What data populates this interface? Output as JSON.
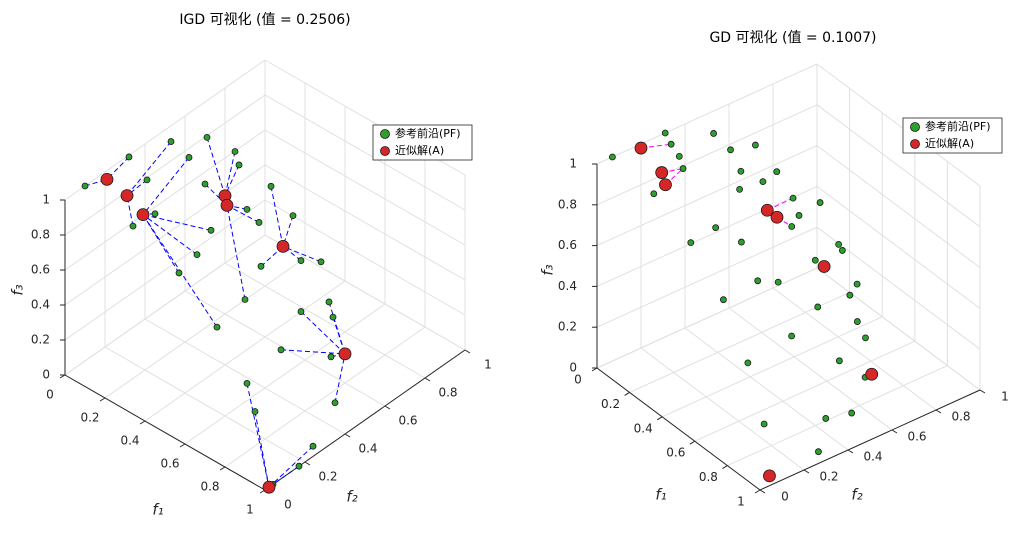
{
  "chart_data": [
    {
      "type": "scatter3d",
      "title": "IGD 可视化 (值 = 0.2506)",
      "x_label": "f₁",
      "y_label": "f₂",
      "z_label": "f₃",
      "xlim": [
        0,
        1
      ],
      "ylim": [
        0,
        1
      ],
      "zlim": [
        0,
        1
      ],
      "xticks": [
        0,
        0.2,
        0.4,
        0.6,
        0.8,
        1
      ],
      "yticks": [
        0,
        0.2,
        0.4,
        0.6,
        0.8,
        1
      ],
      "zticks": [
        0,
        0.2,
        0.4,
        0.6,
        0.8,
        1
      ],
      "grid": true,
      "link_color": "#0000ff",
      "link_from_series": 0,
      "series": [
        {
          "name": "参考前沿(PF)",
          "color": "#2ca02c",
          "x": [
            0,
            0,
            0.05,
            0,
            0.05,
            0,
            0.05,
            0.1,
            0.15,
            0.2,
            0.1,
            0.25,
            0.2,
            0.35,
            0.3,
            0.3,
            0.2,
            0.4,
            0.35,
            0.4,
            0.5,
            0.6,
            0.55,
            0.5,
            0.55,
            0.7,
            0.7,
            0.85,
            0.8,
            0.85,
            1,
            0.96,
            1,
            0.15
          ],
          "y": [
            0.1,
            0.32,
            0.36,
            0.53,
            0.57,
            0.71,
            0.8,
            0.77,
            0.55,
            0.71,
            0.93,
            0.72,
            0.94,
            0.83,
            0.98,
            0.43,
            0.14,
            0.17,
            0.31,
            0.58,
            0.4,
            0.16,
            0.63,
            0.82,
            0.79,
            0.38,
            0.63,
            0.5,
            0.11,
            0.1,
            0.17,
            0.28,
            0.04,
            0.3
          ],
          "z": [
            1,
            0.99,
            0.86,
            0.91,
            0.82,
            0.79,
            0.67,
            0.65,
            0.75,
            0.51,
            0.4,
            0.46,
            0.29,
            0.22,
            0.06,
            0.68,
            0.87,
            0.71,
            0.67,
            0.42,
            0.44,
            0.54,
            0.22,
            0.09,
            0.06,
            0.3,
            0.06,
            0,
            0.39,
            0.27,
            0,
            0,
            0,
            0.78
          ]
        },
        {
          "name": "近似解(A)",
          "color": "#d62728",
          "x": [
            0,
            0.05,
            0.1,
            0.1,
            0.15,
            0.3,
            0.72,
            1
          ],
          "y": [
            0.21,
            0.26,
            0.29,
            0.7,
            0.66,
            0.79,
            0.68,
            0.02
          ],
          "z": [
            0.95,
            0.85,
            0.75,
            0.53,
            0.54,
            0.3,
            0.05,
            0
          ]
        }
      ]
    },
    {
      "type": "scatter3d",
      "title": "GD 可视化 (值 = 0.1007)",
      "x_label": "f₁",
      "y_label": "f₂",
      "z_label": "f₃",
      "xlim": [
        0,
        1
      ],
      "ylim": [
        0,
        1
      ],
      "zlim": [
        0,
        1
      ],
      "xticks": [
        0,
        0.2,
        0.4,
        0.6,
        0.8,
        1
      ],
      "yticks": [
        0,
        0.2,
        0.4,
        0.6,
        0.8,
        1
      ],
      "zticks": [
        0,
        0.2,
        0.4,
        0.6,
        0.8,
        1
      ],
      "grid": true,
      "link_color": "#ff00ff",
      "link_from_series": 1,
      "series": [
        {
          "name": "参考前沿(PF)",
          "color": "#2ca02c",
          "x": [
            0,
            0,
            0.05,
            0.1,
            0.15,
            0.2,
            0,
            0.05,
            0,
            0.1,
            0.2,
            0.05,
            0.1,
            0.15,
            0.1,
            0.2,
            0.25,
            0.35,
            0.4,
            0.4,
            0.2,
            0.25,
            0.3,
            0.45,
            0.5,
            0.6,
            0.3,
            0.35,
            0.45,
            0.45,
            0.5,
            0.6,
            0.65,
            0.75,
            0.7,
            0.82,
            0.85,
            0.85,
            0.94,
            0.96
          ],
          "y": [
            0.07,
            0.31,
            0.3,
            0.3,
            0.28,
            0.11,
            0.53,
            0.57,
            0.72,
            0.58,
            0.5,
            0.78,
            0.68,
            0.78,
            0.94,
            0.77,
            0.7,
            0.28,
            0.13,
            0.36,
            0.95,
            0.93,
            0.77,
            0.49,
            0.36,
            0.13,
            0.96,
            0.89,
            0.67,
            0.85,
            0.85,
            0.44,
            0.62,
            0.13,
            0.7,
            0.55,
            0.41,
            0.13,
            0.31,
            0.07
          ],
          "z": [
            1,
            1,
            0.98,
            0.95,
            0.93,
            0.92,
            0.89,
            0.82,
            0.74,
            0.74,
            0.75,
            0.61,
            0.64,
            0.54,
            0.41,
            0.49,
            0.5,
            0.76,
            0.79,
            0.68,
            0.26,
            0.27,
            0.33,
            0.45,
            0.55,
            0.63,
            0.12,
            0.13,
            0.24,
            0.08,
            0.03,
            0.3,
            0.12,
            0.41,
            0.03,
            0,
            0.06,
            0.17,
            0,
            0
          ]
        },
        {
          "name": "近似解(A)",
          "color": "#d62728",
          "x": [
            0,
            0.1,
            0.15,
            0.1,
            0.2,
            0.3,
            0.7,
            0.95
          ],
          "y": [
            0.2,
            0.22,
            0.2,
            0.7,
            0.67,
            0.81,
            0.73,
            0.08
          ],
          "z": [
            0.98,
            0.91,
            0.89,
            0.49,
            0.53,
            0.28,
            0.03,
            0
          ]
        }
      ]
    }
  ]
}
